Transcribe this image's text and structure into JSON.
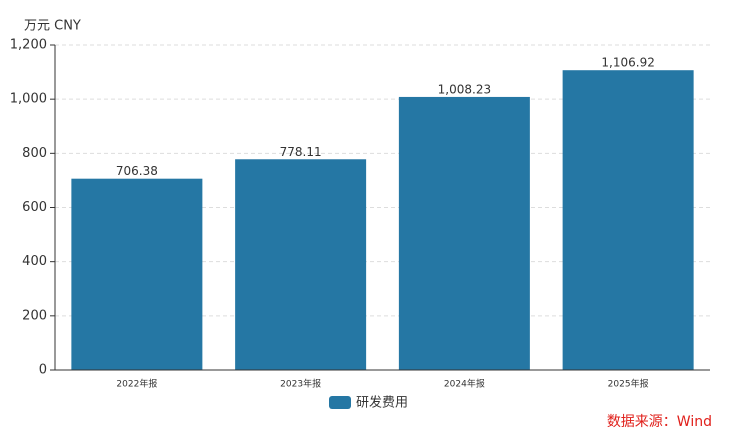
{
  "chart_data": {
    "type": "bar",
    "y_axis_label": "万元  CNY",
    "categories": [
      "2022年报",
      "2023年报",
      "2024年报",
      "2025年报"
    ],
    "series": [
      {
        "name": "研发费用",
        "color": "#2577a4",
        "values": [
          706.38,
          778.11,
          1008.23,
          1106.92
        ],
        "value_labels": [
          "706.38",
          "778.11",
          "1,008.23",
          "1,106.92"
        ]
      }
    ],
    "ylim": [
      0,
      1200
    ],
    "yticks": [
      0,
      200,
      400,
      600,
      800,
      {
        "value": 1000,
        "label": "1,000"
      },
      {
        "value": 1200,
        "label": "1,200"
      }
    ],
    "grid": true,
    "legend": "bottom",
    "source": "数据来源：Wind"
  }
}
